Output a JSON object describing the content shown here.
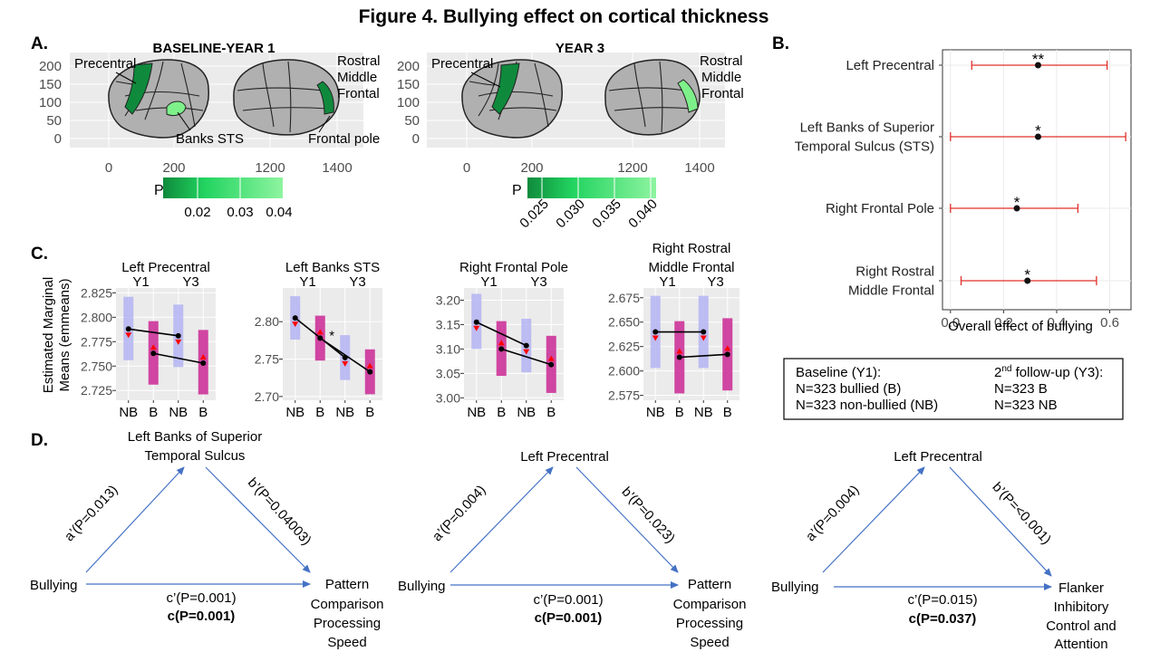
{
  "title": "Figure 4. Bullying effect on cortical thickness",
  "panel_a": {
    "label": "A.",
    "maps": [
      {
        "title": "BASELINE-YEAR  1",
        "y_ticks": [
          "200",
          "150",
          "100",
          "50",
          "0"
        ],
        "x_ticks": [
          "0",
          "200",
          "1200",
          "1400"
        ],
        "region_labels": [
          "Precentral",
          "Banks STS",
          "Rostral",
          "Middle",
          "Frontal",
          "Frontal pole"
        ],
        "legend_title": "P",
        "legend_ticks": [
          "0.02",
          "0.03",
          "0.04"
        ]
      },
      {
        "title": "YEAR  3",
        "y_ticks": [
          "200",
          "150",
          "100",
          "50",
          "0"
        ],
        "x_ticks": [
          "0",
          "200",
          "1200",
          "1400"
        ],
        "region_labels": [
          "Precentral",
          "Rostral",
          "Middle",
          "Frontal"
        ],
        "legend_title": "P",
        "legend_ticks": [
          "0.025",
          "0.030",
          "0.035",
          "0.040"
        ]
      }
    ],
    "colors": {
      "dark": "#0f8a3c",
      "light": "#7ef08a",
      "gray": "#b0b0b0",
      "panel_bg": "#ebebeb"
    }
  },
  "panel_b": {
    "label": "B.",
    "chart_data": {
      "type": "forest",
      "xlabel": "Overall  effect  of  bullying",
      "xlim": [
        -0.03,
        0.68
      ],
      "x_ticks": [
        0.0,
        0.2,
        0.4,
        0.6
      ],
      "x_tick_labels": [
        "0.0",
        "0.2",
        "0.4",
        "0.6"
      ],
      "rows": [
        {
          "label_lines": [
            "Left  Precentral"
          ],
          "estimate": 0.33,
          "lower": 0.08,
          "upper": 0.59,
          "sig": "**"
        },
        {
          "label_lines": [
            "Left  Banks  of  Superior",
            "Temporal  Sulcus  (STS)"
          ],
          "estimate": 0.33,
          "lower": 0.0,
          "upper": 0.66,
          "sig": "*"
        },
        {
          "label_lines": [
            "Right  Frontal  Pole"
          ],
          "estimate": 0.25,
          "lower": 0.0,
          "upper": 0.48,
          "sig": "*"
        },
        {
          "label_lines": [
            "Right  Rostral",
            "Middle  Frontal"
          ],
          "estimate": 0.29,
          "lower": 0.04,
          "upper": 0.55,
          "sig": "*"
        }
      ]
    }
  },
  "panel_c": {
    "label": "C.",
    "ylabel": [
      "Estimated  Marginal",
      "Means  (emmeans)"
    ],
    "chart_data": [
      {
        "type": "interval",
        "title_lines": [
          "Left  Precentral"
        ],
        "year_labels": [
          "Y1",
          "Y3"
        ],
        "categories": [
          "NB",
          "B",
          "NB",
          "B"
        ],
        "ylim": [
          2.715,
          2.83
        ],
        "y_ticks": [
          2.725,
          2.75,
          2.775,
          2.8,
          2.825
        ],
        "y_tick_labels": [
          "2.725",
          "2.750",
          "2.775",
          "2.800",
          "2.825"
        ],
        "means": [
          2.788,
          2.763,
          2.781,
          2.753
        ],
        "lower": [
          2.756,
          2.731,
          2.749,
          2.721
        ],
        "upper": [
          2.821,
          2.796,
          2.813,
          2.787
        ],
        "arrows": [
          "down",
          "up",
          "down",
          "up"
        ],
        "annotation": ""
      },
      {
        "type": "interval",
        "title_lines": [
          "Left  Banks  STS"
        ],
        "year_labels": [
          "Y1",
          "Y3"
        ],
        "categories": [
          "NB",
          "B",
          "NB",
          "B"
        ],
        "ylim": [
          2.695,
          2.845
        ],
        "y_ticks": [
          2.7,
          2.75,
          2.8
        ],
        "y_tick_labels": [
          "2.70",
          "2.75",
          "2.80"
        ],
        "means": [
          2.805,
          2.778,
          2.752,
          2.733
        ],
        "lower": [
          2.776,
          2.748,
          2.722,
          2.703
        ],
        "upper": [
          2.834,
          2.808,
          2.782,
          2.763
        ],
        "arrows": [
          "down",
          "up",
          "down",
          "up"
        ],
        "annotation": "*"
      },
      {
        "type": "interval",
        "title_lines": [
          "Right  Frontal  Pole"
        ],
        "year_labels": [
          "Y1",
          "Y3"
        ],
        "categories": [
          "NB",
          "B",
          "NB",
          "B"
        ],
        "ylim": [
          2.995,
          3.225
        ],
        "y_ticks": [
          3.0,
          3.05,
          3.1,
          3.15,
          3.2
        ],
        "y_tick_labels": [
          "3.00",
          "3.05",
          "3.10",
          "3.15",
          "3.20"
        ],
        "means": [
          3.155,
          3.1,
          3.107,
          3.068
        ],
        "lower": [
          3.1,
          3.045,
          3.052,
          3.01
        ],
        "upper": [
          3.213,
          3.157,
          3.162,
          3.127
        ],
        "arrows": [
          "down",
          "up",
          "down",
          "up"
        ],
        "annotation": ""
      },
      {
        "type": "interval",
        "title_lines": [
          "Right  Rostral",
          "Middle  Frontal"
        ],
        "year_labels": [
          "Y1",
          "Y3"
        ],
        "categories": [
          "NB",
          "B",
          "NB",
          "B"
        ],
        "ylim": [
          2.57,
          2.685
        ],
        "y_ticks": [
          2.575,
          2.6,
          2.625,
          2.65,
          2.675
        ],
        "y_tick_labels": [
          "2.575",
          "2.600",
          "2.625",
          "2.650",
          "2.675"
        ],
        "means": [
          2.64,
          2.614,
          2.64,
          2.617
        ],
        "lower": [
          2.603,
          2.577,
          2.603,
          2.58
        ],
        "upper": [
          2.677,
          2.651,
          2.677,
          2.654
        ],
        "arrows": [
          "down",
          "up",
          "down",
          "up"
        ],
        "annotation": ""
      }
    ],
    "colors": {
      "nb": "#b4b4f3",
      "b": "#cc3399",
      "arrow": "#ff0000"
    }
  },
  "legend_box": {
    "col1": [
      "Baseline  (Y1):",
      "N=323  bullied  (B)",
      "N=323  non-bullied  (NB)"
    ],
    "col2_line1_prefix": "2",
    "col2_line1_sup": "nd",
    "col2_line1_rest": " follow-up  (Y3):",
    "col2": [
      "N=323  B",
      "N=323  NB"
    ]
  },
  "panel_d": {
    "label": "D.",
    "models": [
      {
        "mediator_lines": [
          "Left  Banks  of  Superior",
          "Temporal  Sulcus"
        ],
        "predictor": "Bullying",
        "outcome_lines": [
          "Pattern",
          "Comparison",
          "Processing",
          "Speed"
        ],
        "a_path": "a’(P=0.013)",
        "b_path": "b’(P=0.04003)",
        "c_prime": "c’(P=0.001)",
        "c_total": "c(P=0.001)"
      },
      {
        "mediator_lines": [
          "Left  Precentral"
        ],
        "predictor": "Bullying",
        "outcome_lines": [
          "Pattern",
          "Comparison",
          "Processing",
          "Speed"
        ],
        "a_path": "a’(P=0.004)",
        "b_path": "b’(P=0.023)",
        "c_prime": "c’(P=0.001)",
        "c_total": "c(P=0.001)"
      },
      {
        "mediator_lines": [
          "Left  Precentral"
        ],
        "predictor": "Bullying",
        "outcome_lines": [
          "Flanker",
          "Inhibitory",
          "Control  and",
          "Attention"
        ],
        "a_path": "a’(P=0.004)",
        "b_path": "b’(P=<0.001)",
        "c_prime": "c’(P=0.015)",
        "c_total": "c(P=0.037)"
      }
    ]
  }
}
